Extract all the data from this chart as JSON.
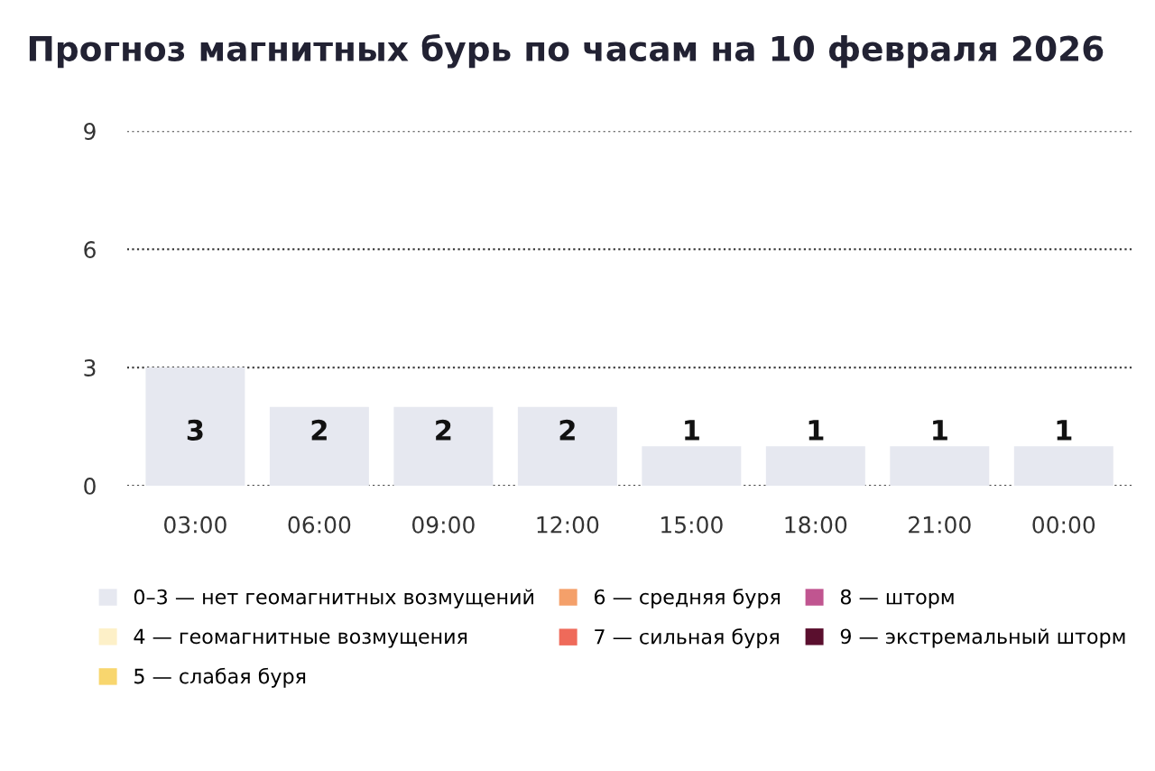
{
  "chart_data": {
    "type": "bar",
    "title": "Прогноз магнитных бурь по часам на 10 февраля 2026",
    "categories": [
      "03:00",
      "06:00",
      "09:00",
      "12:00",
      "15:00",
      "18:00",
      "21:00",
      "00:00"
    ],
    "series": [
      {
        "name": "0–3 — нет геомагнитных возмущений",
        "color": "#e6e8f0",
        "values": [
          3,
          2,
          2,
          2,
          1,
          1,
          1,
          1
        ]
      },
      {
        "name": "4 — геомагнитные возмущения",
        "color": "#fdf0c8",
        "values": [
          null,
          null,
          null,
          null,
          null,
          null,
          null,
          null
        ]
      },
      {
        "name": "5 — слабая буря",
        "color": "#f8d66e",
        "values": [
          null,
          null,
          null,
          null,
          null,
          null,
          null,
          null
        ]
      },
      {
        "name": "6 — средняя буря",
        "color": "#f4a06a",
        "values": [
          null,
          null,
          null,
          null,
          null,
          null,
          null,
          null
        ]
      },
      {
        "name": "7 — сильная буря",
        "color": "#ef6a5a",
        "values": [
          null,
          null,
          null,
          null,
          null,
          null,
          null,
          null
        ]
      },
      {
        "name": "8 — шторм",
        "color": "#c05590",
        "values": [
          null,
          null,
          null,
          null,
          null,
          null,
          null,
          null
        ]
      },
      {
        "name": "9 — экстремальный шторм",
        "color": "#5a0f2e",
        "values": [
          null,
          null,
          null,
          null,
          null,
          null,
          null,
          null
        ]
      }
    ],
    "ylim": [
      0,
      9
    ],
    "yticks": [
      0,
      3,
      6,
      9
    ],
    "grid": "y",
    "legend": "bottom",
    "data_labels": true
  }
}
